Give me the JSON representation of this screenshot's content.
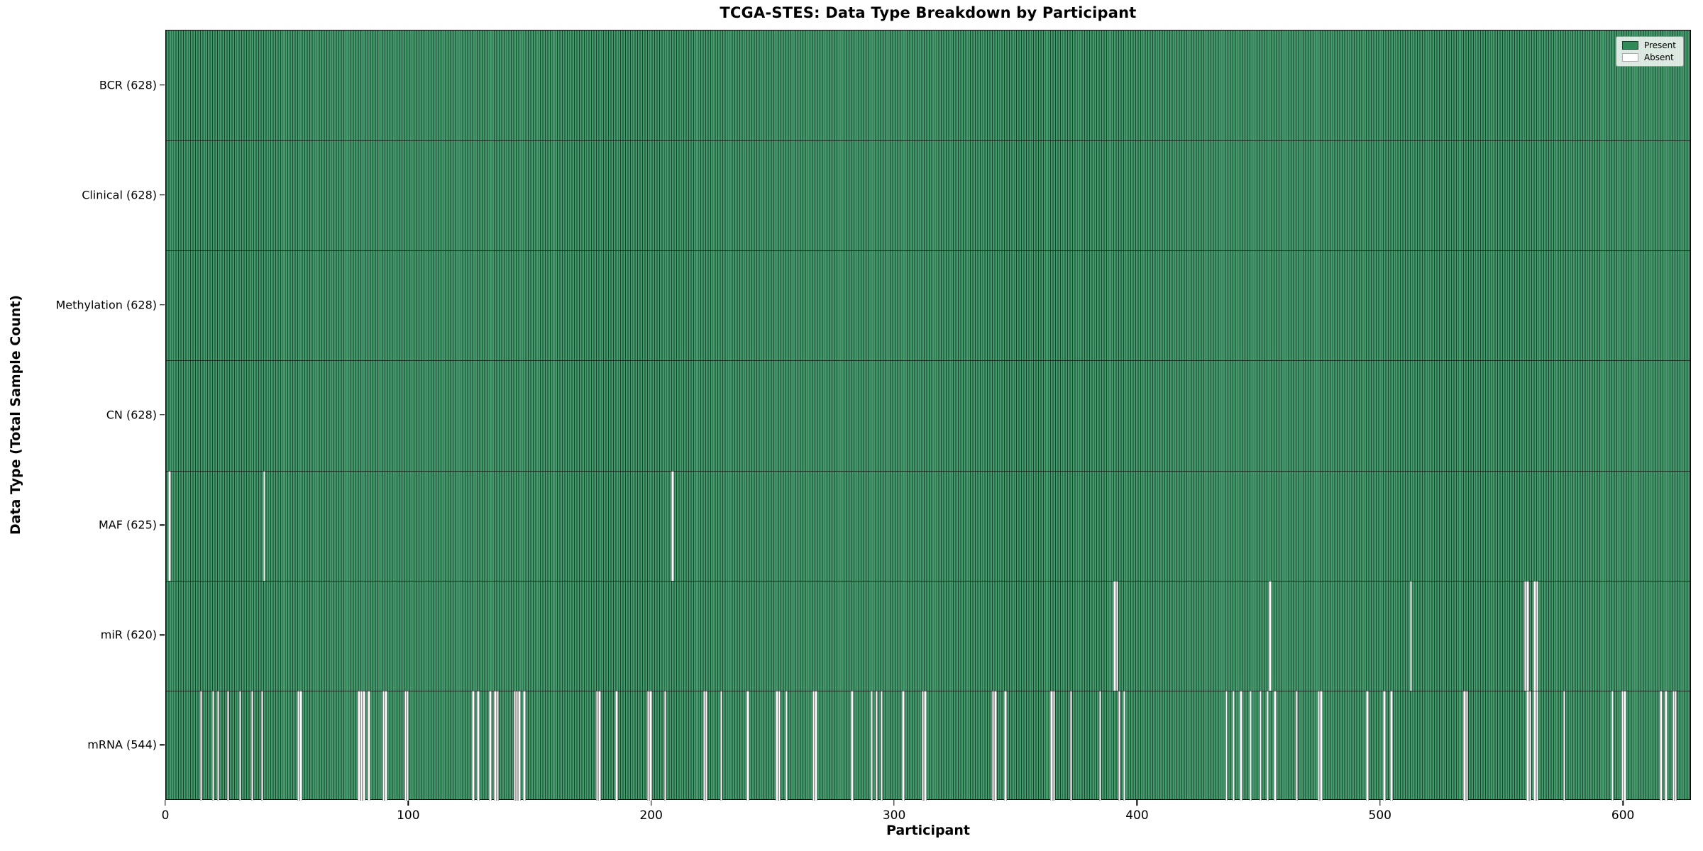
{
  "title": "TCGA-STES: Data Type Breakdown by Participant",
  "xlabel": "Participant",
  "ylabel": "Data Type (Total Sample Count)",
  "legend": {
    "present_label": "Present",
    "absent_label": "Absent"
  },
  "colors": {
    "present_fill": "#459a6c",
    "present_edge": "#17432f",
    "absent_fill": "#fcfcfc",
    "legend_present_swatch": "#2e8b57",
    "legend_absent_swatch": "#ffffff",
    "spine": "#000000"
  },
  "chart_data": {
    "type": "heatmap",
    "title": "TCGA-STES: Data Type Breakdown by Participant",
    "xlabel": "Participant",
    "ylabel": "Data Type (Total Sample Count)",
    "x_range": [
      0,
      628
    ],
    "x_ticks": [
      0,
      100,
      200,
      300,
      400,
      500,
      600
    ],
    "grid": false,
    "legend": [
      "Present",
      "Absent"
    ],
    "legend_position": "upper right",
    "cell_states": {
      "present": 1,
      "absent": 0
    },
    "rows": [
      {
        "label": "BCR (628)",
        "name": "BCR",
        "present_count": 628,
        "absent_count": 0,
        "absent_participants": []
      },
      {
        "label": "Clinical (628)",
        "name": "Clinical",
        "present_count": 628,
        "absent_count": 0,
        "absent_participants": []
      },
      {
        "label": "Methylation (628)",
        "name": "Methylation",
        "present_count": 628,
        "absent_count": 0,
        "absent_participants": []
      },
      {
        "label": "CN (628)",
        "name": "CN",
        "present_count": 628,
        "absent_count": 0,
        "absent_participants": []
      },
      {
        "label": "MAF (625)",
        "name": "MAF",
        "present_count": 625,
        "absent_count": 3,
        "absent_participants": [
          1,
          40,
          208
        ]
      },
      {
        "label": "miR (620)",
        "name": "miR",
        "present_count": 620,
        "absent_count": 8,
        "absent_participants": [
          390,
          391,
          454,
          512,
          559,
          560,
          563,
          564
        ]
      },
      {
        "label": "mRNA (544)",
        "name": "mRNA",
        "present_count": 544,
        "absent_count": 84,
        "absent_participants": [
          14,
          19,
          21,
          25,
          30,
          35,
          39,
          54,
          55,
          79,
          80,
          81,
          83,
          89,
          90,
          98,
          99,
          126,
          128,
          133,
          135,
          136,
          143,
          144,
          145,
          147,
          177,
          178,
          185,
          198,
          199,
          205,
          221,
          222,
          228,
          239,
          251,
          252,
          255,
          266,
          267,
          282,
          290,
          292,
          294,
          303,
          311,
          312,
          340,
          341,
          345,
          364,
          365,
          372,
          384,
          392,
          394,
          436,
          439,
          442,
          446,
          450,
          453,
          456,
          465,
          474,
          475,
          494,
          501,
          504,
          534,
          535,
          560,
          561,
          563,
          564,
          575,
          595,
          599,
          600,
          615,
          617,
          620,
          621
        ]
      }
    ]
  }
}
